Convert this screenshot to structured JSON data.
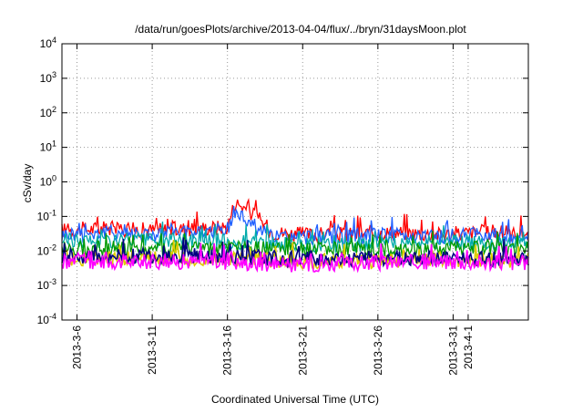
{
  "chart_data": {
    "type": "line",
    "title": "/data/run/goesPlots/archive/2013-04-04/flux/../bryn/31daysMoon.plot",
    "xlabel": "Coordinated Universal Time (UTC)",
    "ylabel": "cSv/day",
    "yscale": "log",
    "ylim": [
      0.0001,
      10000
    ],
    "y_ticks": [
      {
        "base": "10",
        "exp": "-4",
        "value": 0.0001
      },
      {
        "base": "10",
        "exp": "-3",
        "value": 0.001
      },
      {
        "base": "10",
        "exp": "-2",
        "value": 0.01
      },
      {
        "base": "10",
        "exp": "-1",
        "value": 0.1
      },
      {
        "base": "10",
        "exp": "0",
        "value": 1
      },
      {
        "base": "10",
        "exp": "1",
        "value": 10
      },
      {
        "base": "10",
        "exp": "2",
        "value": 100
      },
      {
        "base": "10",
        "exp": "3",
        "value": 1000
      },
      {
        "base": "10",
        "exp": "4",
        "value": 10000
      }
    ],
    "xlim": [
      "2013-03-05",
      "2013-04-05"
    ],
    "x_ticks": [
      "2013-3-6",
      "2013-3-11",
      "2013-3-16",
      "2013-3-21",
      "2013-3-26",
      "2013-3-31",
      "2013-4-1"
    ],
    "grid": true,
    "series": [
      {
        "color": "#ff0000",
        "x": [
          "2013-03-05",
          "2013-03-08",
          "2013-03-11",
          "2013-03-14",
          "2013-03-16",
          "2013-03-16.5",
          "2013-03-17",
          "2013-03-18",
          "2013-03-19",
          "2013-03-21",
          "2013-03-24",
          "2013-03-27",
          "2013-03-30",
          "2013-04-02",
          "2013-04-05"
        ],
        "values": [
          0.04,
          0.045,
          0.04,
          0.045,
          0.05,
          0.25,
          0.2,
          0.09,
          0.035,
          0.03,
          0.03,
          0.035,
          0.03,
          0.035,
          0.03
        ]
      },
      {
        "color": "#1f5fff",
        "x": [
          "2013-03-05",
          "2013-03-08",
          "2013-03-11",
          "2013-03-14",
          "2013-03-16",
          "2013-03-16.5",
          "2013-03-17",
          "2013-03-18",
          "2013-03-19",
          "2013-03-21",
          "2013-03-24",
          "2013-03-27",
          "2013-03-30",
          "2013-04-02",
          "2013-04-05"
        ],
        "values": [
          0.03,
          0.035,
          0.03,
          0.035,
          0.04,
          0.12,
          0.1,
          0.05,
          0.025,
          0.025,
          0.025,
          0.03,
          0.025,
          0.03,
          0.025
        ]
      },
      {
        "color": "#00aaaa",
        "x": [
          "2013-03-05",
          "2013-03-10",
          "2013-03-15",
          "2013-03-20",
          "2013-03-25",
          "2013-03-30",
          "2013-04-05"
        ],
        "values": [
          0.02,
          0.02,
          0.02,
          0.015,
          0.016,
          0.018,
          0.017
        ]
      },
      {
        "color": "#009900",
        "x": [
          "2013-03-05",
          "2013-03-10",
          "2013-03-15",
          "2013-03-20",
          "2013-03-25",
          "2013-03-30",
          "2013-04-05"
        ],
        "values": [
          0.012,
          0.012,
          0.012,
          0.011,
          0.011,
          0.012,
          0.011
        ]
      },
      {
        "color": "#ddcc00",
        "x": [
          "2013-03-05",
          "2013-03-10",
          "2013-03-15",
          "2013-03-20",
          "2013-03-25",
          "2013-03-30",
          "2013-04-05"
        ],
        "values": [
          0.006,
          0.006,
          0.006,
          0.005,
          0.005,
          0.006,
          0.005
        ]
      },
      {
        "color": "#000080",
        "x": [
          "2013-03-05",
          "2013-03-10",
          "2013-03-15",
          "2013-03-20",
          "2013-03-25",
          "2013-03-30",
          "2013-04-05"
        ],
        "values": [
          0.007,
          0.007,
          0.007,
          0.006,
          0.006,
          0.006,
          0.006
        ]
      },
      {
        "color": "#ff00ff",
        "x": [
          "2013-03-05",
          "2013-03-10",
          "2013-03-15",
          "2013-03-20",
          "2013-03-25",
          "2013-03-30",
          "2013-04-05"
        ],
        "values": [
          0.005,
          0.005,
          0.005,
          0.004,
          0.0045,
          0.005,
          0.0045
        ]
      }
    ]
  }
}
